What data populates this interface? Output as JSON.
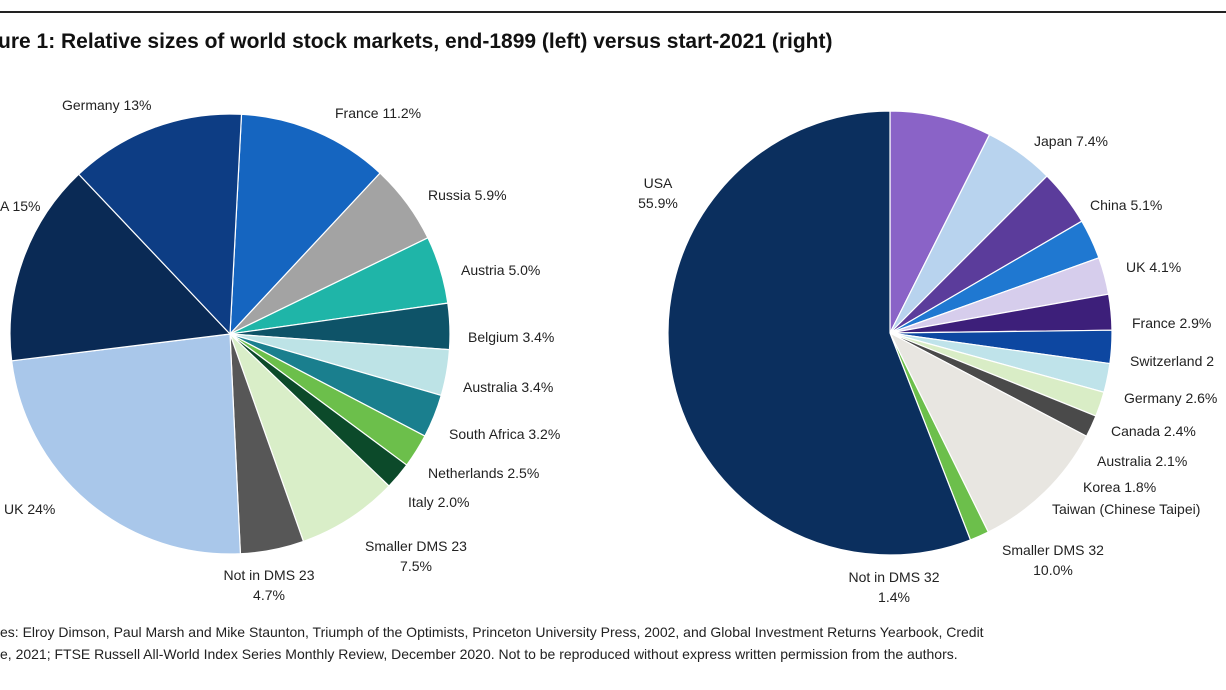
{
  "title": "ure 1: Relative sizes of world stock markets, end-1899 (left) versus start-2021 (right)",
  "source": {
    "line1": "es: Elroy Dimson, Paul Marsh and Mike Staunton, Triumph of the Optimists, Princeton University Press, 2002, and Global Investment Returns Yearbook, Credit",
    "line2": "e, 2021; FTSE Russell All-World Index Series Monthly Review, December 2020. Not to be reproduced without express written permission from the authors."
  },
  "chart_data": [
    {
      "type": "pie",
      "name": "end-1899",
      "slices": [
        {
          "label": "France 11.2%",
          "value": 11.2,
          "color": "#1565c0"
        },
        {
          "label": "Russia 5.9%",
          "value": 5.9,
          "color": "#a3a3a3"
        },
        {
          "label": "Austria 5.0%",
          "value": 5.0,
          "color": "#1fb5a8"
        },
        {
          "label": "Belgium 3.4%",
          "value": 3.4,
          "color": "#0e5368"
        },
        {
          "label": "Australia 3.4%",
          "value": 3.4,
          "color": "#bde3e6"
        },
        {
          "label": "South Africa 3.2%",
          "value": 3.2,
          "color": "#1a7f8e"
        },
        {
          "label": "Netherlands 2.5%",
          "value": 2.5,
          "color": "#6cbf4b"
        },
        {
          "label": "Italy 2.0%",
          "value": 2.0,
          "color": "#0c4a2a"
        },
        {
          "label": "Smaller DMS 23\n7.5%",
          "value": 7.5,
          "color": "#d9eec8"
        },
        {
          "label": "Not in DMS 23\n4.7%",
          "value": 4.7,
          "color": "#575757"
        },
        {
          "label": "UK 24%",
          "value": 24.0,
          "color": "#a9c7ea"
        },
        {
          "label": "A 15%",
          "value": 15.0,
          "color": "#0a2a55"
        },
        {
          "label": "Germany 13%",
          "value": 13.0,
          "color": "#0d3d84"
        }
      ]
    },
    {
      "type": "pie",
      "name": "start-2021",
      "slices": [
        {
          "label": "Japan 7.4%",
          "value": 7.4,
          "color": "#8a63c7"
        },
        {
          "label": "China 5.1%",
          "value": 5.1,
          "color": "#b8d3ee"
        },
        {
          "label": "UK 4.1%",
          "value": 4.1,
          "color": "#5b3c9b"
        },
        {
          "label": "France 2.9%",
          "value": 2.9,
          "color": "#1f78d1"
        },
        {
          "label": "Switzerland 2",
          "value": 2.7,
          "color": "#d6cdec"
        },
        {
          "label": "Germany 2.6%",
          "value": 2.6,
          "color": "#3d1f7a"
        },
        {
          "label": "Canada 2.4%",
          "value": 2.4,
          "color": "#0d47a1"
        },
        {
          "label": "Australia 2.1%",
          "value": 2.1,
          "color": "#bfe3ea"
        },
        {
          "label": "Korea 1.8%",
          "value": 1.8,
          "color": "#d9edc6"
        },
        {
          "label": "Taiwan (Chinese Taipei)",
          "value": 1.6,
          "color": "#4a4a4a"
        },
        {
          "label": "Smaller DMS 32\n10.0%",
          "value": 10.0,
          "color": "#e8e6e1"
        },
        {
          "label": "Not in DMS 32\n1.4%",
          "value": 1.4,
          "color": "#6cbf4b"
        },
        {
          "label": "USA\n55.9%",
          "value": 55.9,
          "color": "#0b2f5e"
        }
      ]
    }
  ]
}
